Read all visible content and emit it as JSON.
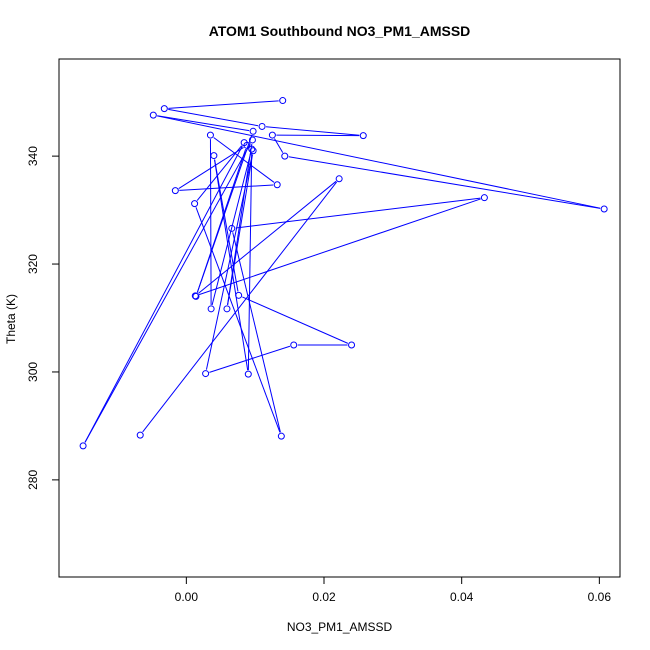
{
  "chart_data": {
    "type": "line",
    "title": "ATOM1 Southbound NO3_PM1_AMSSD",
    "xlabel": "NO3_PM1_AMSSD",
    "ylabel": "Theta (K)",
    "xlim": [
      -0.0185,
      0.063
    ],
    "ylim": [
      262,
      358
    ],
    "xticks": [
      0.0,
      0.02,
      0.04,
      0.06
    ],
    "xtick_labels": [
      "0.00",
      "0.02",
      "0.04",
      "0.06"
    ],
    "yticks": [
      280,
      300,
      320,
      340
    ],
    "ytick_labels": [
      "280",
      "300",
      "320",
      "340"
    ],
    "grid": false,
    "legend": "none",
    "series": [
      {
        "color": "#0000ff",
        "marker": "open-circle",
        "points": [
          {
            "x": 0.014,
            "y": 350.3
          },
          {
            "x": -0.0032,
            "y": 348.8
          },
          {
            "x": 0.011,
            "y": 345.5
          },
          {
            "x": 0.0257,
            "y": 343.8
          },
          {
            "x": 0.0125,
            "y": 343.9
          },
          {
            "x": 0.0143,
            "y": 340.0
          },
          {
            "x": 0.0607,
            "y": 330.2
          },
          {
            "x": -0.0048,
            "y": 347.6
          },
          {
            "x": 0.0097,
            "y": 344.6
          },
          {
            "x": 0.0014,
            "y": 314.0
          },
          {
            "x": 0.0088,
            "y": 342.0
          },
          {
            "x": -0.0016,
            "y": 333.6
          },
          {
            "x": 0.0132,
            "y": 334.7
          },
          {
            "x": 0.0035,
            "y": 343.9
          },
          {
            "x": 0.0036,
            "y": 311.7
          },
          {
            "x": 0.0095,
            "y": 341.3
          },
          {
            "x": 0.009,
            "y": 299.6
          },
          {
            "x": 0.004,
            "y": 340.1
          },
          {
            "x": 0.0076,
            "y": 314.2
          },
          {
            "x": 0.024,
            "y": 305.0
          },
          {
            "x": 0.0156,
            "y": 305.0
          },
          {
            "x": 0.0028,
            "y": 299.7
          },
          {
            "x": 0.0097,
            "y": 341.0
          },
          {
            "x": 0.0059,
            "y": 311.7
          },
          {
            "x": 0.0096,
            "y": 343.0
          },
          {
            "x": -0.015,
            "y": 286.3
          },
          {
            "x": 0.0084,
            "y": 342.5
          },
          {
            "x": 0.0012,
            "y": 331.2
          },
          {
            "x": 0.0138,
            "y": 288.1
          },
          {
            "x": 0.0066,
            "y": 326.6
          },
          {
            "x": 0.0433,
            "y": 332.3
          },
          {
            "x": 0.0013,
            "y": 314.1
          },
          {
            "x": 0.0222,
            "y": 335.8
          },
          {
            "x": -0.0067,
            "y": 288.3
          }
        ]
      }
    ]
  }
}
